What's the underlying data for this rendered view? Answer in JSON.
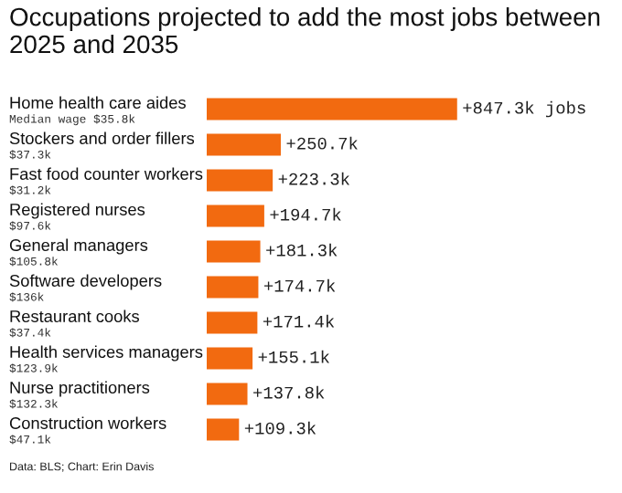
{
  "chart_data": {
    "type": "bar",
    "orientation": "horizontal",
    "title": "Occupations projected to add the most jobs between 2025 and 2035",
    "categories": [
      "Home health care aides\nMedian wage $35.8k",
      "Stockers and order fillers\n$37.3k",
      "Fast food counter workers\n$31.2k",
      "Registered nurses\n$97.6k",
      "General managers\n$105.8k",
      "Software developers\n$136k",
      "Restaurant cooks\n$37.4k",
      "Health services managers\n$123.9k",
      "Nurse practitioners\n$132.3k",
      "Construction workers\n$47.1k"
    ],
    "values": [
      847.3,
      250.7,
      223.3,
      194.7,
      181.3,
      174.7,
      171.4,
      155.1,
      137.8,
      109.3
    ],
    "value_labels": [
      "+847.3k jobs",
      "+250.7k",
      "+223.3k",
      "+194.7k",
      "+181.3k",
      "+174.7k",
      "+171.4k",
      "+155.1k",
      "+137.8k",
      "+109.3k"
    ],
    "color": "#f26a10",
    "annotations": [
      "Data: BLS; Chart: Erin Davis"
    ]
  }
}
